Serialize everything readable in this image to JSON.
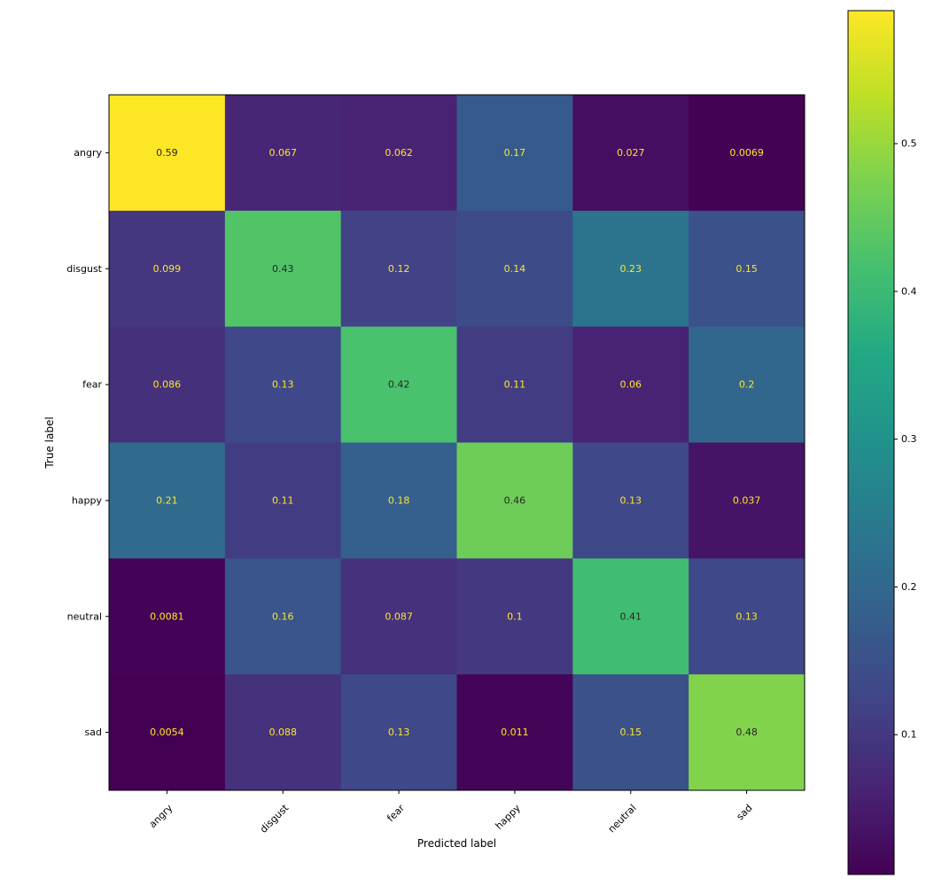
{
  "chart_data": {
    "type": "heatmap",
    "title": "",
    "xlabel": "Predicted label",
    "ylabel": "True label",
    "x_categories": [
      "angry",
      "disgust",
      "fear",
      "happy",
      "neutral",
      "sad"
    ],
    "y_categories": [
      "angry",
      "disgust",
      "fear",
      "happy",
      "neutral",
      "sad"
    ],
    "values": [
      [
        0.59,
        0.067,
        0.062,
        0.17,
        0.027,
        0.0069
      ],
      [
        0.099,
        0.43,
        0.12,
        0.14,
        0.23,
        0.15
      ],
      [
        0.086,
        0.13,
        0.42,
        0.11,
        0.06,
        0.2
      ],
      [
        0.21,
        0.11,
        0.18,
        0.46,
        0.13,
        0.037
      ],
      [
        0.0081,
        0.16,
        0.087,
        0.1,
        0.41,
        0.13
      ],
      [
        0.0054,
        0.088,
        0.13,
        0.011,
        0.15,
        0.48
      ]
    ],
    "value_labels": [
      [
        "0.59",
        "0.067",
        "0.062",
        "0.17",
        "0.027",
        "0.0069"
      ],
      [
        "0.099",
        "0.43",
        "0.12",
        "0.14",
        "0.23",
        "0.15"
      ],
      [
        "0.086",
        "0.13",
        "0.42",
        "0.11",
        "0.06",
        "0.2"
      ],
      [
        "0.21",
        "0.11",
        "0.18",
        "0.46",
        "0.13",
        "0.037"
      ],
      [
        "0.0081",
        "0.16",
        "0.087",
        "0.1",
        "0.41",
        "0.13"
      ],
      [
        "0.0054",
        "0.088",
        "0.13",
        "0.011",
        "0.15",
        "0.48"
      ]
    ],
    "colormap": "viridis",
    "color_range": [
      0.0054,
      0.59
    ],
    "colorbar": {
      "ticks": [
        0.1,
        0.2,
        0.3,
        0.4,
        0.5
      ],
      "tick_labels": [
        "0.1",
        "0.2",
        "0.3",
        "0.4",
        "0.5"
      ]
    },
    "text_colors": {
      "light": "#fde725",
      "dark": "#262626"
    },
    "grid": false
  }
}
